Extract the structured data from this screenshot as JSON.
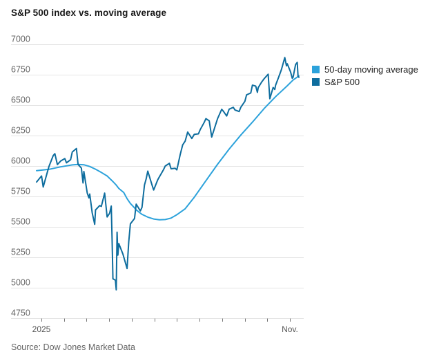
{
  "chart_data": {
    "type": "line",
    "title": "S&P 500 index vs. moving average",
    "source": "Source: Dow Jones Market Data",
    "xlabel": "",
    "ylabel": "",
    "ylim": [
      4750,
      7000
    ],
    "y_ticks": [
      7000,
      6750,
      6500,
      6250,
      6000,
      5750,
      5500,
      5250,
      5000,
      4750
    ],
    "x_axis": {
      "tick_count": 12,
      "start_label": "2025",
      "end_label": "Nov."
    },
    "grid": "horizontal",
    "legend_position": "right",
    "colors": {
      "grid": "#E4E4E4",
      "tick": "#777777",
      "axis_label": "#666666",
      "x_label": "#555555"
    },
    "series": [
      {
        "name": "50-day moving average",
        "color": "#2CA2DB",
        "points": [
          [
            "2025-01-02",
            5962
          ],
          [
            "2025-01-17",
            5973
          ],
          [
            "2025-01-31",
            5993
          ],
          [
            "2025-02-14",
            6009
          ],
          [
            "2025-02-21",
            6013
          ],
          [
            "2025-02-28",
            6010
          ],
          [
            "2025-03-07",
            5996
          ],
          [
            "2025-03-14",
            5974
          ],
          [
            "2025-03-21",
            5947
          ],
          [
            "2025-03-28",
            5918
          ],
          [
            "2025-04-04",
            5872
          ],
          [
            "2025-04-08",
            5843
          ],
          [
            "2025-04-11",
            5816
          ],
          [
            "2025-04-17",
            5782
          ],
          [
            "2025-04-21",
            5732
          ],
          [
            "2025-04-25",
            5692
          ],
          [
            "2025-04-30",
            5656
          ],
          [
            "2025-05-02",
            5640
          ],
          [
            "2025-05-09",
            5603
          ],
          [
            "2025-05-16",
            5580
          ],
          [
            "2025-05-23",
            5565
          ],
          [
            "2025-05-30",
            5558
          ],
          [
            "2025-06-06",
            5560
          ],
          [
            "2025-06-13",
            5572
          ],
          [
            "2025-06-20",
            5600
          ],
          [
            "2025-06-30",
            5649
          ],
          [
            "2025-07-11",
            5744
          ],
          [
            "2025-07-25",
            5879
          ],
          [
            "2025-08-08",
            6014
          ],
          [
            "2025-08-22",
            6139
          ],
          [
            "2025-09-05",
            6254
          ],
          [
            "2025-09-19",
            6360
          ],
          [
            "2025-10-03",
            6471
          ],
          [
            "2025-10-17",
            6570
          ],
          [
            "2025-10-31",
            6659
          ],
          [
            "2025-11-07",
            6706
          ],
          [
            "2025-11-14",
            6740
          ]
        ]
      },
      {
        "name": "S&P 500",
        "color": "#0E6D9E",
        "points": [
          [
            "2025-01-02",
            5869
          ],
          [
            "2025-01-08",
            5918
          ],
          [
            "2025-01-10",
            5827
          ],
          [
            "2025-01-15",
            5950
          ],
          [
            "2025-01-17",
            5997
          ],
          [
            "2025-01-22",
            6086
          ],
          [
            "2025-01-24",
            6101
          ],
          [
            "2025-01-27",
            6012
          ],
          [
            "2025-01-31",
            6041
          ],
          [
            "2025-02-05",
            6061
          ],
          [
            "2025-02-07",
            6026
          ],
          [
            "2025-02-12",
            6052
          ],
          [
            "2025-02-14",
            6115
          ],
          [
            "2025-02-19",
            6144
          ],
          [
            "2025-02-21",
            6013
          ],
          [
            "2025-02-25",
            5983
          ],
          [
            "2025-02-27",
            5861
          ],
          [
            "2025-02-28",
            5955
          ],
          [
            "2025-03-04",
            5778
          ],
          [
            "2025-03-06",
            5738
          ],
          [
            "2025-03-07",
            5770
          ],
          [
            "2025-03-10",
            5615
          ],
          [
            "2025-03-13",
            5521
          ],
          [
            "2025-03-14",
            5639
          ],
          [
            "2025-03-19",
            5675
          ],
          [
            "2025-03-21",
            5668
          ],
          [
            "2025-03-25",
            5777
          ],
          [
            "2025-03-28",
            5581
          ],
          [
            "2025-03-31",
            5612
          ],
          [
            "2025-04-02",
            5671
          ],
          [
            "2025-04-03",
            5396
          ],
          [
            "2025-04-04",
            5074
          ],
          [
            "2025-04-07",
            5062
          ],
          [
            "2025-04-08",
            4983
          ],
          [
            "2025-04-09",
            5457
          ],
          [
            "2025-04-10",
            5268
          ],
          [
            "2025-04-11",
            5363
          ],
          [
            "2025-04-16",
            5276
          ],
          [
            "2025-04-21",
            5158
          ],
          [
            "2025-04-23",
            5376
          ],
          [
            "2025-04-25",
            5525
          ],
          [
            "2025-04-30",
            5569
          ],
          [
            "2025-05-02",
            5687
          ],
          [
            "2025-05-07",
            5631
          ],
          [
            "2025-05-09",
            5660
          ],
          [
            "2025-05-12",
            5844
          ],
          [
            "2025-05-14",
            5893
          ],
          [
            "2025-05-16",
            5958
          ],
          [
            "2025-05-21",
            5845
          ],
          [
            "2025-05-23",
            5803
          ],
          [
            "2025-05-28",
            5888
          ],
          [
            "2025-05-30",
            5912
          ],
          [
            "2025-06-04",
            5971
          ],
          [
            "2025-06-06",
            6000
          ],
          [
            "2025-06-11",
            6022
          ],
          [
            "2025-06-13",
            5977
          ],
          [
            "2025-06-18",
            5981
          ],
          [
            "2025-06-20",
            5968
          ],
          [
            "2025-06-24",
            6092
          ],
          [
            "2025-06-27",
            6173
          ],
          [
            "2025-06-30",
            6205
          ],
          [
            "2025-07-03",
            6279
          ],
          [
            "2025-07-08",
            6226
          ],
          [
            "2025-07-11",
            6260
          ],
          [
            "2025-07-16",
            6264
          ],
          [
            "2025-07-18",
            6297
          ],
          [
            "2025-07-23",
            6359
          ],
          [
            "2025-07-25",
            6389
          ],
          [
            "2025-07-29",
            6371
          ],
          [
            "2025-08-01",
            6238
          ],
          [
            "2025-08-06",
            6345
          ],
          [
            "2025-08-08",
            6389
          ],
          [
            "2025-08-13",
            6466
          ],
          [
            "2025-08-15",
            6450
          ],
          [
            "2025-08-19",
            6411
          ],
          [
            "2025-08-22",
            6467
          ],
          [
            "2025-08-27",
            6482
          ],
          [
            "2025-08-29",
            6460
          ],
          [
            "2025-09-03",
            6448
          ],
          [
            "2025-09-05",
            6482
          ],
          [
            "2025-09-10",
            6532
          ],
          [
            "2025-09-12",
            6584
          ],
          [
            "2025-09-17",
            6600
          ],
          [
            "2025-09-19",
            6664
          ],
          [
            "2025-09-23",
            6656
          ],
          [
            "2025-09-25",
            6605
          ],
          [
            "2025-09-26",
            6644
          ],
          [
            "2025-09-30",
            6688
          ],
          [
            "2025-10-03",
            6716
          ],
          [
            "2025-10-08",
            6754
          ],
          [
            "2025-10-10",
            6553
          ],
          [
            "2025-10-14",
            6645
          ],
          [
            "2025-10-16",
            6629
          ],
          [
            "2025-10-17",
            6664
          ],
          [
            "2025-10-21",
            6736
          ],
          [
            "2025-10-24",
            6792
          ],
          [
            "2025-10-28",
            6891
          ],
          [
            "2025-10-30",
            6823
          ],
          [
            "2025-10-31",
            6840
          ],
          [
            "2025-11-04",
            6772
          ],
          [
            "2025-11-06",
            6721
          ],
          [
            "2025-11-07",
            6729
          ],
          [
            "2025-11-10",
            6833
          ],
          [
            "2025-11-12",
            6851
          ],
          [
            "2025-11-13",
            6737
          ],
          [
            "2025-11-14",
            6729
          ]
        ]
      }
    ]
  }
}
